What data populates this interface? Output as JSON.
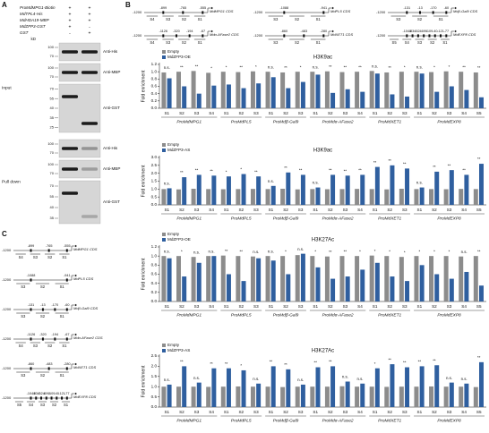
{
  "panel_labels": [
    "A",
    "B",
    "C"
  ],
  "pulldown": {
    "rows": [
      {
        "label": "ProMdMPG1-Biotin",
        "signs": [
          "+",
          "+"
        ]
      },
      {
        "label": "MdTPL4-His",
        "signs": [
          "+",
          "+"
        ]
      },
      {
        "label": "MdHDA19-MBP",
        "signs": [
          "+",
          "+"
        ]
      },
      {
        "label": "MdZFP3-GST",
        "signs": [
          "+",
          "-"
        ]
      },
      {
        "label": "GST",
        "signs": [
          "-",
          "+"
        ]
      }
    ],
    "kd": "kD",
    "sections": [
      {
        "label": "Input",
        "blots": [
          {
            "antibody": "Anti-His",
            "markers": [
              "100",
              "70"
            ]
          },
          {
            "antibody": "Anti-MBP",
            "markers": [
              "100",
              "70"
            ]
          },
          {
            "antibody": "Anti-GST",
            "markers": [
              "70",
              "55",
              "40",
              "35",
              "25"
            ]
          }
        ]
      },
      {
        "label": "Pull down",
        "blots": [
          {
            "antibody": "Anti-His",
            "markers": [
              "100",
              "70"
            ]
          },
          {
            "antibody": "Anti-MBP",
            "markers": [
              "100",
              "70"
            ]
          },
          {
            "antibody": "Anti-GST",
            "markers": [
              "70",
              "55",
              "40",
              "35"
            ]
          }
        ]
      }
    ]
  },
  "promoters": [
    {
      "cds": "MdMPG1 CDS",
      "start": "-1200",
      "sites": [
        "-899",
        "-765",
        "-555"
      ],
      "segments": [
        "S4",
        "S3",
        "S2",
        "S1"
      ]
    },
    {
      "cds": "MdPL5 CDS",
      "start": "-1200",
      "sites": [
        "-1088",
        "-941"
      ],
      "segments": [
        "S3",
        "S2",
        "S1"
      ]
    },
    {
      "cds": "Mdβ-Gal9 CDS",
      "start": "-1200",
      "sites": [
        "-131",
        "-13",
        "-170",
        "-60"
      ],
      "segments": [
        "S3",
        "S2",
        "S1"
      ]
    },
    {
      "cds": "Mdα-AFase2 CDS",
      "start": "-1200",
      "sites": [
        "-1126",
        "-320",
        "-194",
        "-67"
      ],
      "segments": [
        "S4",
        "S3",
        "S2",
        "S1"
      ]
    },
    {
      "cds": "MdXET1 CDS",
      "start": "-1200",
      "sites": [
        "-860",
        "-483",
        "-280"
      ],
      "segments": [
        "S3",
        "S2",
        "S1"
      ]
    },
    {
      "cds": "MdEXP8 CDS",
      "start": "-1200",
      "sites": [
        "-1049",
        "-834",
        "-524",
        "-699",
        "-109",
        "-40",
        "-121",
        "-77"
      ],
      "segments": [
        "S5",
        "S4",
        "S3",
        "S2",
        "S1"
      ]
    }
  ],
  "chart_data": [
    {
      "type": "bar",
      "title": "H3K9ac",
      "y_label": "Fold enrichment",
      "categories": [
        "S1",
        "S2",
        "S3",
        "S4",
        "S1",
        "S2",
        "S3",
        "S1",
        "S2",
        "S3",
        "S1",
        "S2",
        "S3",
        "S4",
        "S1",
        "S2",
        "S3",
        "S1",
        "S2",
        "S3",
        "S4",
        "S5"
      ],
      "groups": [
        "ProMdMPG1",
        "ProMdPL5",
        "ProMdβ-Gal9",
        "ProMdα-AFase2",
        "ProMdXET1",
        "ProMdEXP8"
      ],
      "series": [
        {
          "name": "Empty",
          "color": "#8c8c8c",
          "values": [
            0.98,
            1.0,
            1.02,
            0.97,
            1.0,
            0.99,
            1.01,
            1.0,
            0.98,
            1.0,
            1.0,
            1.01,
            0.99,
            1.0,
            1.02,
            0.98,
            1.0,
            1.0,
            0.99,
            1.01,
            1.0,
            0.98
          ]
        },
        {
          "name": "MdZFP3-OE",
          "color": "#2f5f9f",
          "values": [
            0.82,
            0.6,
            0.4,
            0.62,
            0.65,
            0.55,
            0.68,
            0.85,
            0.55,
            0.72,
            0.92,
            0.42,
            0.52,
            0.45,
            0.95,
            0.38,
            0.32,
            0.95,
            0.45,
            0.6,
            0.5,
            0.3
          ]
        }
      ],
      "annotations": [
        "n.s.",
        "**",
        "**",
        "*",
        "*",
        "**",
        "*",
        "n.s.",
        "**",
        "*",
        "n.s.",
        "**",
        "**",
        "**",
        "n.s.",
        "**",
        "*",
        "n.s.",
        "*",
        "*",
        "**",
        "**"
      ],
      "ylim": [
        0,
        1.2
      ],
      "yticks": [
        {
          "value": 0,
          "label": "0.0"
        },
        0.2,
        0.4,
        0.6,
        0.8,
        {
          "value": 1,
          "label": "1.0"
        },
        1.2
      ]
    },
    {
      "type": "bar",
      "title": "H3K9ac",
      "y_label": "Fold enrichment",
      "categories": [
        "S1",
        "S2",
        "S3",
        "S4",
        "S1",
        "S2",
        "S3",
        "S1",
        "S2",
        "S3",
        "S1",
        "S2",
        "S3",
        "S4",
        "S1",
        "S2",
        "S3",
        "S1",
        "S2",
        "S3",
        "S4",
        "S5"
      ],
      "groups": [
        "ProMdMPG1",
        "ProMdPL5",
        "ProMdβ-Gal9",
        "ProMdα-AFase2",
        "ProMdXET1",
        "ProMdEXP8"
      ],
      "series": [
        {
          "name": "Empty",
          "color": "#8c8c8c",
          "values": [
            1.0,
            0.98,
            1.02,
            1.0,
            0.99,
            1.0,
            1.01,
            1.0,
            1.02,
            0.98,
            1.0,
            0.99,
            1.0,
            1.01,
            1.0,
            0.98,
            1.02,
            1.0,
            1.0,
            0.99,
            1.01,
            1.0
          ]
        },
        {
          "name": "MdZFP3-AS",
          "color": "#2f5f9f",
          "values": [
            1.05,
            1.75,
            1.9,
            1.85,
            1.8,
            1.95,
            1.8,
            1.2,
            2.05,
            1.9,
            1.1,
            1.9,
            1.85,
            1.9,
            2.4,
            2.5,
            2.3,
            1.1,
            2.1,
            2.2,
            1.9,
            2.6
          ]
        }
      ],
      "annotations": [
        "n.s.",
        "**",
        "**",
        "**",
        "*",
        "*",
        "**",
        "n.s.",
        "**",
        "**",
        "n.s.",
        "**",
        "**",
        "**",
        "**",
        "**",
        "**",
        "n.s.",
        "**",
        "**",
        "**",
        "**"
      ],
      "ylim": [
        0,
        3
      ],
      "yticks": [
        {
          "value": 0,
          "label": "0.0"
        },
        0.5,
        {
          "value": 1,
          "label": "1.0"
        },
        1.5,
        {
          "value": 2,
          "label": "2.0"
        },
        2.5,
        {
          "value": 3,
          "label": "3.0"
        }
      ]
    },
    {
      "type": "bar",
      "title": "H3K27Ac",
      "y_label": "Fold enrichment",
      "categories": [
        "S1",
        "S2",
        "S3",
        "S4",
        "S1",
        "S2",
        "S3",
        "S1",
        "S2",
        "S3",
        "S1",
        "S2",
        "S3",
        "S4",
        "S1",
        "S2",
        "S3",
        "S1",
        "S2",
        "S3",
        "S4",
        "S5"
      ],
      "groups": [
        "ProMdMPG1",
        "ProMdPL5",
        "ProMdβ-Gal9",
        "ProMdα-AFase2",
        "ProMdXET1",
        "ProMdEXP8"
      ],
      "series": [
        {
          "name": "Empty",
          "color": "#8c8c8c",
          "values": [
            1.0,
            1.0,
            0.98,
            1.0,
            1.01,
            1.0,
            0.99,
            1.0,
            1.0,
            1.02,
            1.0,
            0.99,
            1.0,
            1.0,
            1.01,
            1.0,
            0.98,
            1.0,
            1.0,
            1.0,
            0.99,
            1.0
          ]
        },
        {
          "name": "MdZFP3-OE",
          "color": "#2f5f9f",
          "values": [
            0.95,
            0.55,
            0.85,
            1.0,
            0.6,
            0.45,
            0.95,
            0.9,
            0.6,
            1.05,
            0.75,
            0.5,
            0.55,
            0.7,
            0.85,
            0.55,
            0.45,
            0.8,
            0.6,
            0.5,
            0.65,
            0.35
          ]
        }
      ],
      "annotations": [
        "n.s.",
        "*",
        "n.s.",
        "n.s.",
        "**",
        "**",
        "n.s.",
        "n.s.",
        "*",
        "n.s.",
        "*",
        "**",
        "**",
        "*",
        "*",
        "*",
        "*",
        "*",
        "*",
        "*",
        "n.s.",
        "**"
      ],
      "ylim": [
        0,
        1.2
      ],
      "yticks": [
        {
          "value": 0,
          "label": "0.0"
        },
        0.2,
        0.4,
        0.6,
        0.8,
        {
          "value": 1,
          "label": "1.0"
        },
        1.2
      ]
    },
    {
      "type": "bar",
      "title": "H3K27Ac",
      "y_label": "Fold enrichment",
      "categories": [
        "S1",
        "S2",
        "S3",
        "S4",
        "S1",
        "S2",
        "S3",
        "S1",
        "S2",
        "S3",
        "S1",
        "S2",
        "S3",
        "S4",
        "S1",
        "S2",
        "S3",
        "S1",
        "S2",
        "S3",
        "S4",
        "S5"
      ],
      "groups": [
        "ProMdMPG1",
        "ProMdPL5",
        "ProMdβ-Gal9",
        "ProMdα-AFase2",
        "ProMdXET1",
        "ProMdEXP8"
      ],
      "series": [
        {
          "name": "Empty",
          "color": "#8c8c8c",
          "values": [
            1.0,
            1.0,
            1.0,
            0.99,
            1.0,
            1.01,
            1.0,
            1.0,
            0.98,
            1.0,
            1.0,
            1.0,
            1.02,
            1.0,
            1.0,
            0.99,
            1.0,
            1.0,
            1.01,
            1.0,
            1.0,
            0.98
          ]
        },
        {
          "name": "MdZFP3-AS",
          "color": "#2f5f9f",
          "values": [
            1.1,
            2.0,
            1.2,
            1.9,
            1.9,
            1.8,
            1.15,
            2.0,
            1.85,
            1.1,
            1.95,
            2.0,
            1.25,
            1.15,
            1.9,
            2.1,
            1.95,
            2.0,
            2.05,
            1.2,
            1.15,
            2.2
          ]
        }
      ],
      "annotations": [
        "n.s.",
        "**",
        "n.s.",
        "**",
        "**",
        "*",
        "n.s.",
        "**",
        "**",
        "n.s.",
        "**",
        "**",
        "n.s.",
        "n.s.",
        "*",
        "**",
        "**",
        "**",
        "**",
        "n.s.",
        "n.s.",
        "**"
      ],
      "ylim": [
        0,
        2.5
      ],
      "yticks": [
        {
          "value": 0,
          "label": "0.0"
        },
        0.5,
        {
          "value": 1,
          "label": "1.0"
        },
        1.5,
        {
          "value": 2,
          "label": "2.0"
        },
        2.5
      ]
    }
  ]
}
